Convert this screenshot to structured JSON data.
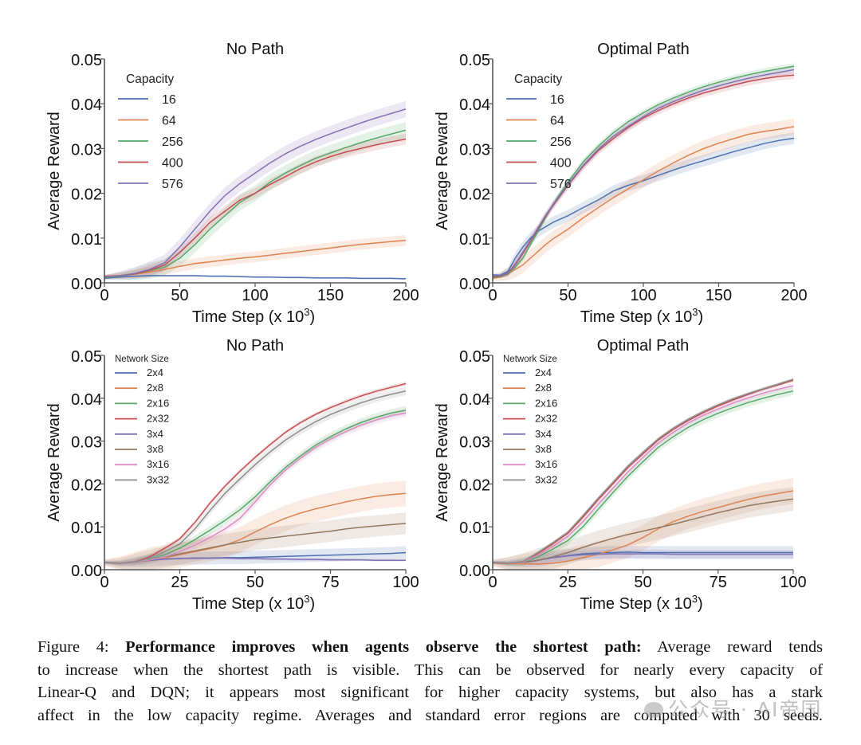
{
  "figure": {
    "caption": {
      "label": "Figure 4:",
      "bold": "Performance improves when agents observe the shortest path:",
      "lines": [
        "Average reward tends",
        "to increase when the shortest path is visible.  This can be observed for nearly every capacity of",
        "Linear-Q and DQN; it appears most significant for higher capacity systems, but also has a stark",
        "affect in the low capacity regime. Averages and standard error regions are computed with 30 seeds."
      ]
    },
    "watermark": "公众号 · AI帝国"
  },
  "chart_data": [
    {
      "type": "line",
      "title": "No Path",
      "xlabel": "Time Step (x 10",
      "xlabel_sup": "3",
      "xlabel_close": ")",
      "ylabel": "Average Reward",
      "xlim": [
        0,
        200
      ],
      "ylim": [
        0,
        0.05
      ],
      "xticks": [
        0,
        50,
        100,
        150,
        200
      ],
      "yticks": [
        "0.00",
        "0.01",
        "0.02",
        "0.03",
        "0.04",
        "0.05"
      ],
      "grid": false,
      "legend": {
        "title": "Capacity",
        "placement": "top-left"
      },
      "x": [
        0,
        10,
        20,
        30,
        40,
        50,
        60,
        70,
        80,
        90,
        100,
        110,
        120,
        130,
        140,
        150,
        160,
        170,
        180,
        190,
        200
      ],
      "series": [
        {
          "name": "16",
          "color": "#4c72b0",
          "err": 0.0002,
          "values": [
            0.001,
            0.0013,
            0.0015,
            0.0016,
            0.0016,
            0.0016,
            0.0016,
            0.0015,
            0.0015,
            0.0014,
            0.0013,
            0.0013,
            0.0012,
            0.0012,
            0.0011,
            0.0011,
            0.0011,
            0.001,
            0.001,
            0.001,
            0.0009
          ]
        },
        {
          "name": "64",
          "color": "#dd8452",
          "err": 0.0012,
          "values": [
            0.0012,
            0.0015,
            0.0019,
            0.0024,
            0.003,
            0.0037,
            0.0043,
            0.0047,
            0.0051,
            0.0055,
            0.0058,
            0.0062,
            0.0066,
            0.007,
            0.0074,
            0.0078,
            0.0082,
            0.0086,
            0.0089,
            0.0092,
            0.0095
          ]
        },
        {
          "name": "256",
          "color": "#55a868",
          "err": 0.0018,
          "values": [
            0.0012,
            0.0015,
            0.002,
            0.0027,
            0.0035,
            0.0055,
            0.0085,
            0.012,
            0.015,
            0.018,
            0.02,
            0.0225,
            0.0245,
            0.0262,
            0.0278,
            0.029,
            0.0302,
            0.0313,
            0.0323,
            0.0332,
            0.0341
          ]
        },
        {
          "name": "400",
          "color": "#c44e52",
          "err": 0.0012,
          "values": [
            0.0015,
            0.0016,
            0.002,
            0.0028,
            0.004,
            0.0068,
            0.01,
            0.0135,
            0.016,
            0.0185,
            0.02,
            0.022,
            0.0237,
            0.0255,
            0.027,
            0.0282,
            0.0292,
            0.03,
            0.0308,
            0.0315,
            0.0321
          ]
        },
        {
          "name": "576",
          "color": "#8172b3",
          "err": 0.0018,
          "values": [
            0.0013,
            0.0016,
            0.0021,
            0.003,
            0.0045,
            0.008,
            0.012,
            0.016,
            0.0195,
            0.0222,
            0.0245,
            0.0268,
            0.0288,
            0.0305,
            0.032,
            0.0333,
            0.0345,
            0.0357,
            0.0368,
            0.0378,
            0.0388
          ]
        }
      ]
    },
    {
      "type": "line",
      "title": "Optimal Path",
      "xlabel": "Time Step (x 10",
      "xlabel_sup": "3",
      "xlabel_close": ")",
      "ylabel": "Average Reward",
      "xlim": [
        0,
        200
      ],
      "ylim": [
        0,
        0.05
      ],
      "xticks": [
        0,
        50,
        100,
        150,
        200
      ],
      "yticks": [
        "0.00",
        "0.01",
        "0.02",
        "0.03",
        "0.04",
        "0.05"
      ],
      "grid": false,
      "legend": {
        "title": "Capacity",
        "placement": "top-left"
      },
      "x": [
        0,
        5,
        10,
        15,
        20,
        25,
        30,
        35,
        40,
        50,
        60,
        70,
        80,
        90,
        100,
        110,
        120,
        130,
        140,
        150,
        160,
        170,
        180,
        190,
        200
      ],
      "series": [
        {
          "name": "16",
          "color": "#4c72b0",
          "err": 0.0013,
          "values": [
            0.0018,
            0.0017,
            0.0025,
            0.0055,
            0.008,
            0.01,
            0.0115,
            0.0125,
            0.0135,
            0.015,
            0.0168,
            0.0185,
            0.0205,
            0.0218,
            0.0228,
            0.024,
            0.0252,
            0.0263,
            0.0273,
            0.0283,
            0.0293,
            0.0302,
            0.0311,
            0.0318,
            0.0323
          ]
        },
        {
          "name": "64",
          "color": "#dd8452",
          "err": 0.0018,
          "values": [
            0.001,
            0.0013,
            0.002,
            0.003,
            0.004,
            0.0055,
            0.007,
            0.0085,
            0.0098,
            0.012,
            0.0145,
            0.0168,
            0.019,
            0.021,
            0.023,
            0.025,
            0.0268,
            0.0285,
            0.03,
            0.0312,
            0.0322,
            0.0332,
            0.0338,
            0.0343,
            0.0349
          ]
        },
        {
          "name": "256",
          "color": "#55a868",
          "err": 0.0007,
          "values": [
            0.0012,
            0.0014,
            0.002,
            0.0035,
            0.0055,
            0.0085,
            0.0115,
            0.0145,
            0.0175,
            0.0225,
            0.027,
            0.0305,
            0.0335,
            0.036,
            0.038,
            0.0398,
            0.0413,
            0.0426,
            0.0438,
            0.0448,
            0.0457,
            0.0465,
            0.0472,
            0.0478,
            0.0484
          ]
        },
        {
          "name": "400",
          "color": "#c44e52",
          "err": 0.0009,
          "values": [
            0.0014,
            0.0015,
            0.0021,
            0.004,
            0.0065,
            0.0092,
            0.012,
            0.0148,
            0.0172,
            0.0218,
            0.026,
            0.0295,
            0.0322,
            0.0347,
            0.0368,
            0.0385,
            0.04,
            0.0413,
            0.0424,
            0.0433,
            0.0442,
            0.045,
            0.0456,
            0.0461,
            0.0464
          ]
        },
        {
          "name": "576",
          "color": "#8172b3",
          "err": 0.0009,
          "values": [
            0.0016,
            0.0016,
            0.0022,
            0.0042,
            0.0068,
            0.0095,
            0.0122,
            0.015,
            0.0174,
            0.022,
            0.0262,
            0.0298,
            0.0327,
            0.035,
            0.0371,
            0.039,
            0.0405,
            0.0418,
            0.043,
            0.044,
            0.0449,
            0.0457,
            0.0464,
            0.047,
            0.0476
          ]
        }
      ]
    },
    {
      "type": "line",
      "title": "No Path",
      "xlabel": "Time Step (x 10",
      "xlabel_sup": "3",
      "xlabel_close": ")",
      "ylabel": "Average Reward",
      "xlim": [
        0,
        100
      ],
      "ylim": [
        0,
        0.05
      ],
      "xticks": [
        0,
        25,
        50,
        75,
        100
      ],
      "yticks": [
        "0.00",
        "0.01",
        "0.02",
        "0.03",
        "0.04",
        "0.05"
      ],
      "grid": false,
      "legend": {
        "title": "Network Size",
        "placement": "top-left"
      },
      "x": [
        0,
        5,
        10,
        15,
        20,
        25,
        30,
        35,
        40,
        45,
        50,
        55,
        60,
        65,
        70,
        75,
        80,
        85,
        90,
        95,
        100
      ],
      "series": [
        {
          "name": "2x4",
          "color": "#4c72b0",
          "err": 0.0015,
          "values": [
            0.0017,
            0.0015,
            0.0018,
            0.0022,
            0.0025,
            0.0026,
            0.0027,
            0.0027,
            0.0028,
            0.0028,
            0.0029,
            0.003,
            0.0031,
            0.0032,
            0.0033,
            0.0034,
            0.0035,
            0.0036,
            0.0037,
            0.0038,
            0.004
          ]
        },
        {
          "name": "2x8",
          "color": "#dd8452",
          "err": 0.003,
          "values": [
            0.0017,
            0.0015,
            0.0018,
            0.0022,
            0.0028,
            0.0035,
            0.0042,
            0.0049,
            0.0057,
            0.007,
            0.0088,
            0.0105,
            0.012,
            0.0132,
            0.0142,
            0.015,
            0.0158,
            0.0165,
            0.0171,
            0.0175,
            0.0178
          ]
        },
        {
          "name": "2x16",
          "color": "#55a868",
          "err": 0.001,
          "values": [
            0.0017,
            0.0015,
            0.0018,
            0.0024,
            0.0035,
            0.005,
            0.007,
            0.0092,
            0.0115,
            0.014,
            0.017,
            0.0205,
            0.0238,
            0.0265,
            0.029,
            0.031,
            0.0328,
            0.0343,
            0.0355,
            0.0365,
            0.0372
          ]
        },
        {
          "name": "2x32",
          "color": "#c44e52",
          "err": 0.0005,
          "values": [
            0.0017,
            0.0015,
            0.0018,
            0.003,
            0.005,
            0.0072,
            0.011,
            0.0155,
            0.0195,
            0.023,
            0.0262,
            0.0292,
            0.032,
            0.0343,
            0.0362,
            0.0378,
            0.0392,
            0.0405,
            0.0416,
            0.0425,
            0.0434
          ]
        },
        {
          "name": "3x4",
          "color": "#8172b3",
          "err": 0.0003,
          "values": [
            0.0017,
            0.0015,
            0.0018,
            0.0022,
            0.0025,
            0.0026,
            0.0027,
            0.0027,
            0.0027,
            0.0026,
            0.0026,
            0.0025,
            0.0025,
            0.0024,
            0.0024,
            0.0023,
            0.0023,
            0.0023,
            0.0022,
            0.0022,
            0.0022
          ]
        },
        {
          "name": "3x8",
          "color": "#937860",
          "err": 0.0025,
          "values": [
            0.0017,
            0.0015,
            0.0018,
            0.0022,
            0.003,
            0.0037,
            0.0044,
            0.0051,
            0.0058,
            0.0064,
            0.007,
            0.0074,
            0.0078,
            0.0082,
            0.0086,
            0.009,
            0.0095,
            0.0099,
            0.0102,
            0.0105,
            0.0108
          ]
        },
        {
          "name": "3x16",
          "color": "#da8bc3",
          "err": 0.001,
          "values": [
            0.0017,
            0.0015,
            0.0018,
            0.0023,
            0.003,
            0.0042,
            0.0057,
            0.0075,
            0.0095,
            0.012,
            0.0158,
            0.0198,
            0.0232,
            0.026,
            0.0285,
            0.0305,
            0.0322,
            0.0337,
            0.0349,
            0.0359,
            0.0366
          ]
        },
        {
          "name": "3x32",
          "color": "#8c8c8c",
          "err": 0.001,
          "values": [
            0.0017,
            0.0015,
            0.0018,
            0.0027,
            0.0042,
            0.006,
            0.0095,
            0.0138,
            0.0178,
            0.0212,
            0.0245,
            0.0275,
            0.0302,
            0.0325,
            0.0345,
            0.0362,
            0.0376,
            0.0389,
            0.04,
            0.0409,
            0.0417
          ]
        }
      ]
    },
    {
      "type": "line",
      "title": "Optimal Path",
      "xlabel": "Time Step (x 10",
      "xlabel_sup": "3",
      "xlabel_close": ")",
      "ylabel": "Average Reward",
      "xlim": [
        0,
        100
      ],
      "ylim": [
        0,
        0.05
      ],
      "xticks": [
        0,
        25,
        50,
        75,
        100
      ],
      "yticks": [
        "0.00",
        "0.01",
        "0.02",
        "0.03",
        "0.04",
        "0.05"
      ],
      "grid": false,
      "legend": {
        "title": "Network Size",
        "placement": "top-left"
      },
      "x": [
        0,
        5,
        10,
        15,
        20,
        25,
        30,
        35,
        40,
        45,
        50,
        55,
        60,
        65,
        70,
        75,
        80,
        85,
        90,
        95,
        100
      ],
      "series": [
        {
          "name": "2x4",
          "color": "#4c72b0",
          "err": 0.0015,
          "values": [
            0.0017,
            0.0015,
            0.0017,
            0.0022,
            0.0028,
            0.0033,
            0.0037,
            0.0039,
            0.004,
            0.0041,
            0.004,
            0.004,
            0.004,
            0.004,
            0.004,
            0.004,
            0.004,
            0.004,
            0.004,
            0.004,
            0.004
          ]
        },
        {
          "name": "2x8",
          "color": "#dd8452",
          "err": 0.003,
          "values": [
            0.0015,
            0.0014,
            0.0014,
            0.0013,
            0.0015,
            0.002,
            0.0028,
            0.0036,
            0.0046,
            0.0058,
            0.0075,
            0.0095,
            0.0112,
            0.0125,
            0.0136,
            0.0145,
            0.0155,
            0.0164,
            0.0172,
            0.0178,
            0.0184
          ]
        },
        {
          "name": "2x16",
          "color": "#55a868",
          "err": 0.001,
          "values": [
            0.0017,
            0.0015,
            0.0017,
            0.003,
            0.0048,
            0.0068,
            0.01,
            0.014,
            0.018,
            0.0218,
            0.0252,
            0.0285,
            0.031,
            0.0332,
            0.035,
            0.0365,
            0.0378,
            0.039,
            0.04,
            0.0409,
            0.0417
          ]
        },
        {
          "name": "2x32",
          "color": "#c44e52",
          "err": 0.0004,
          "values": [
            0.0017,
            0.0015,
            0.0018,
            0.0038,
            0.006,
            0.0085,
            0.0122,
            0.0162,
            0.02,
            0.0238,
            0.027,
            0.0302,
            0.0327,
            0.0348,
            0.0366,
            0.0382,
            0.0396,
            0.0409,
            0.0421,
            0.0431,
            0.0442
          ]
        },
        {
          "name": "3x4",
          "color": "#8172b3",
          "err": 0.001,
          "values": [
            0.0017,
            0.0015,
            0.0017,
            0.0022,
            0.0028,
            0.0032,
            0.0035,
            0.0036,
            0.0037,
            0.0037,
            0.0037,
            0.0037,
            0.0036,
            0.0036,
            0.0036,
            0.0036,
            0.0036,
            0.0036,
            0.0036,
            0.0036,
            0.0036
          ]
        },
        {
          "name": "3x8",
          "color": "#937860",
          "err": 0.0028,
          "values": [
            0.0017,
            0.0015,
            0.0017,
            0.0022,
            0.003,
            0.004,
            0.0052,
            0.0063,
            0.0073,
            0.0082,
            0.009,
            0.0098,
            0.0106,
            0.0115,
            0.0124,
            0.0133,
            0.0141,
            0.0149,
            0.0155,
            0.016,
            0.0165
          ]
        },
        {
          "name": "3x16",
          "color": "#da8bc3",
          "err": 0.0006,
          "values": [
            0.0017,
            0.0015,
            0.0017,
            0.0034,
            0.0054,
            0.0078,
            0.0112,
            0.0152,
            0.019,
            0.0228,
            0.0262,
            0.0295,
            0.032,
            0.0342,
            0.036,
            0.0375,
            0.0389,
            0.0401,
            0.0412,
            0.0421,
            0.0429
          ]
        },
        {
          "name": "3x32",
          "color": "#8c8c8c",
          "err": 0.0004,
          "values": [
            0.0017,
            0.0015,
            0.0018,
            0.004,
            0.0063,
            0.0088,
            0.0126,
            0.0166,
            0.0204,
            0.0242,
            0.0274,
            0.0305,
            0.033,
            0.0351,
            0.0369,
            0.0385,
            0.0399,
            0.0411,
            0.0422,
            0.0433,
            0.0444
          ]
        }
      ]
    }
  ]
}
